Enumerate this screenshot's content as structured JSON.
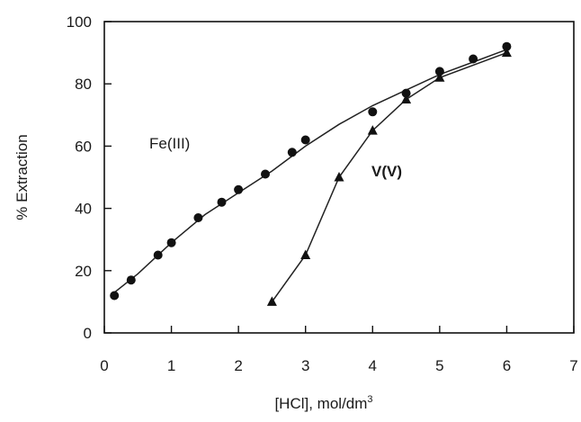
{
  "chart_data": {
    "type": "line",
    "title": "",
    "xlabel": "[HCl], mol/dm",
    "xlabel_superscript": "3",
    "ylabel": "% Extraction",
    "xlim": [
      0,
      7
    ],
    "ylim": [
      0,
      100
    ],
    "x_ticks": [
      "0",
      "1",
      "2",
      "3",
      "4",
      "5",
      "6",
      "7"
    ],
    "y_ticks": [
      "0",
      "20",
      "40",
      "60",
      "80",
      "100"
    ],
    "grid": false,
    "legend": "none",
    "series": [
      {
        "name": "Fe(III)",
        "marker": "circle",
        "x": [
          0.15,
          0.4,
          0.8,
          1.0,
          1.4,
          1.75,
          2.0,
          2.4,
          2.8,
          3.0,
          4.0,
          4.5,
          5.0,
          5.5,
          6.0
        ],
        "y": [
          12,
          17,
          25,
          29,
          37,
          42,
          46,
          51,
          58,
          62,
          71,
          77,
          84,
          88,
          92
        ],
        "curve_x": [
          0.15,
          0.5,
          1.0,
          1.5,
          2.0,
          2.5,
          3.0,
          3.5,
          4.0,
          4.5,
          5.0,
          5.5,
          6.0
        ],
        "curve_y": [
          13,
          19,
          29,
          38,
          45,
          52,
          60,
          67,
          73,
          78,
          83,
          87,
          91
        ]
      },
      {
        "name": "V(V)",
        "marker": "triangle",
        "x": [
          2.5,
          3.0,
          3.5,
          4.0,
          4.5,
          5.0,
          6.0
        ],
        "y": [
          10,
          25,
          50,
          65,
          75,
          82,
          90
        ]
      }
    ]
  }
}
